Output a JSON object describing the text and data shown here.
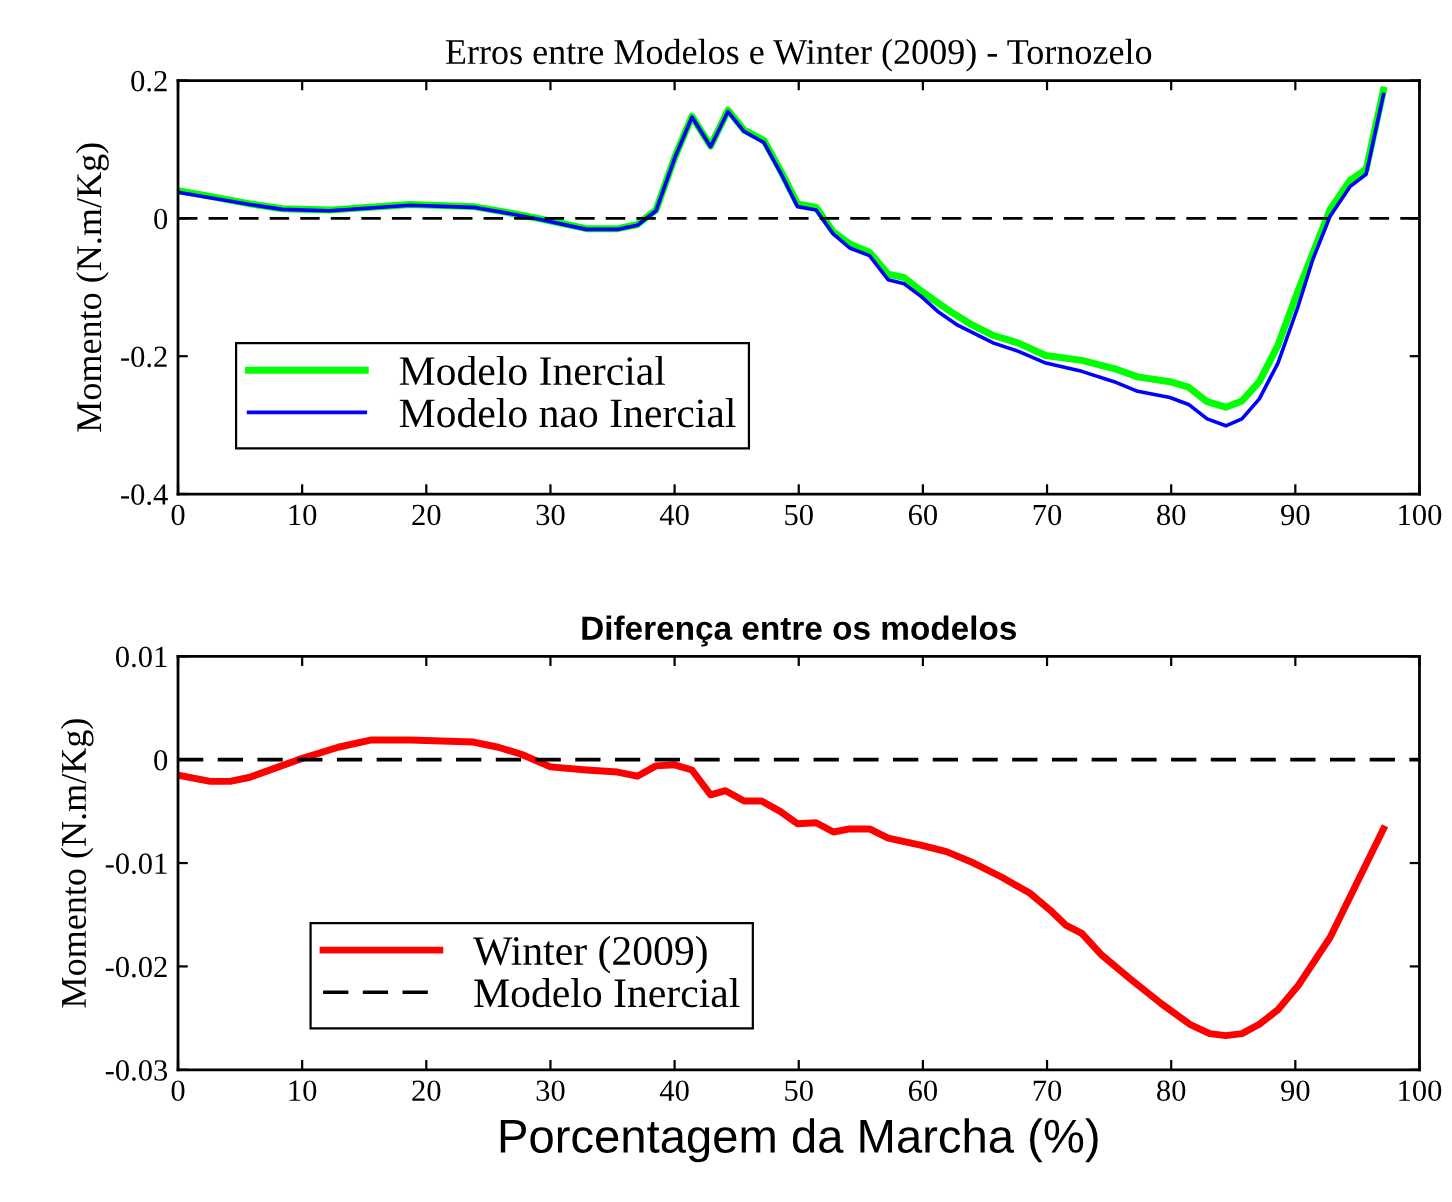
{
  "chart_data": [
    {
      "type": "line",
      "title": "Erros entre Modelos e Winter (2009) - Tornozelo",
      "ylabel": "Momento (N.m/Kg)",
      "xlim": [
        0,
        100
      ],
      "xticks": [
        0,
        10,
        20,
        30,
        40,
        50,
        60,
        70,
        80,
        90,
        100
      ],
      "ylim": [
        -0.4,
        0.2
      ],
      "yticks": [
        {
          "value": -0.4,
          "label": "-0.4"
        },
        {
          "value": -0.2,
          "label": "-0.2"
        },
        0,
        0.2
      ],
      "legend": "bottom left",
      "grid": false,
      "ref_lines": [
        {
          "axis": "y",
          "value": 0,
          "color": "#000000",
          "line_style": "dashed"
        }
      ],
      "series": [
        {
          "name": "Modelo Inercial",
          "color": "#00ff00",
          "x": [
            0,
            2.6,
            5.8,
            8.4,
            12.2,
            15.5,
            18.7,
            23.8,
            26.4,
            29,
            32.9,
            35.4,
            37,
            38.5,
            40,
            41.4,
            42.9,
            44.3,
            45.6,
            47.2,
            48.6,
            49.9,
            51.4,
            52.8,
            54.1,
            55.7,
            57.2,
            58.5,
            59.9,
            62.2,
            63.8,
            65.7,
            67.7,
            69.9,
            72.8,
            75.4,
            77.3,
            79.9,
            81.4,
            82.9,
            84.4,
            85.7,
            87.1,
            88.6,
            90.2,
            92.8,
            94.4,
            95.7,
            97.1
          ],
          "values": [
            0.04,
            0.032,
            0.021,
            0.014,
            0.012,
            0.016,
            0.02,
            0.017,
            0.009,
            0,
            -0.015,
            -0.015,
            -0.009,
            0.012,
            0.088,
            0.148,
            0.105,
            0.157,
            0.128,
            0.113,
            0.067,
            0.021,
            0.016,
            -0.02,
            -0.037,
            -0.049,
            -0.081,
            -0.086,
            -0.106,
            -0.135,
            -0.153,
            -0.17,
            -0.181,
            -0.199,
            -0.206,
            -0.218,
            -0.23,
            -0.237,
            -0.245,
            -0.266,
            -0.274,
            -0.265,
            -0.237,
            -0.184,
            -0.106,
            0.013,
            0.055,
            0.071,
            0.186
          ]
        },
        {
          "name": "Modelo nao Inercial",
          "color": "#0000ff",
          "x": [
            0,
            2.6,
            5.8,
            8.4,
            12.2,
            15.5,
            18.7,
            23.8,
            26.4,
            29,
            32.9,
            35.4,
            37,
            38.5,
            40,
            41.4,
            42.9,
            44.3,
            45.6,
            47.2,
            48.6,
            49.9,
            51.4,
            52.8,
            54.1,
            55.7,
            57.2,
            58.5,
            59.9,
            61.2,
            62.8,
            65.7,
            67.7,
            69.9,
            72.8,
            75.4,
            77.3,
            79.9,
            81.4,
            82.9,
            84.4,
            85.7,
            87.1,
            88.6,
            90.2,
            91.4,
            92.8,
            94.4,
            95.7,
            97.1
          ],
          "values": [
            0.038,
            0.03,
            0.02,
            0.013,
            0.011,
            0.015,
            0.019,
            0.016,
            0.008,
            -0.001,
            -0.016,
            -0.016,
            -0.01,
            0.011,
            0.087,
            0.147,
            0.104,
            0.155,
            0.126,
            0.11,
            0.064,
            0.017,
            0.012,
            -0.023,
            -0.043,
            -0.054,
            -0.089,
            -0.095,
            -0.114,
            -0.135,
            -0.155,
            -0.181,
            -0.193,
            -0.21,
            -0.222,
            -0.237,
            -0.251,
            -0.26,
            -0.27,
            -0.291,
            -0.301,
            -0.291,
            -0.262,
            -0.21,
            -0.129,
            -0.06,
            0.003,
            0.046,
            0.064,
            0.18
          ]
        }
      ]
    },
    {
      "type": "line",
      "title": "Diferença entre os modelos",
      "xlabel": "Porcentagem da Marcha (%)",
      "ylabel": "Momento (N.m/Kg)",
      "xlim": [
        0,
        100
      ],
      "xticks": [
        0,
        10,
        20,
        30,
        40,
        50,
        60,
        70,
        80,
        90,
        100
      ],
      "ylim": [
        -0.03,
        0.01
      ],
      "yticks": [
        {
          "value": -0.03,
          "label": "-0.03"
        },
        {
          "value": -0.02,
          "label": "-0.02"
        },
        {
          "value": -0.01,
          "label": "-0.01"
        },
        0,
        0.01
      ],
      "legend": "bottom left",
      "grid": false,
      "series": [
        {
          "name": "Winter (2009)",
          "color": "#ff0000",
          "x": [
            0,
            2.6,
            4.2,
            5.8,
            9.7,
            12.9,
            15.5,
            18.7,
            23.8,
            25.8,
            27.7,
            30,
            32.9,
            35.4,
            37,
            38.5,
            40,
            41.4,
            42.9,
            44.1,
            45.6,
            47,
            48.5,
            49.9,
            51.4,
            52.8,
            54.1,
            55.7,
            57.2,
            59.9,
            61.9,
            64.1,
            66.4,
            68.6,
            70.2,
            71.5,
            72.8,
            74.4,
            76.7,
            79.2,
            81.5,
            83.1,
            84.4,
            85.7,
            87.1,
            88.6,
            90.2,
            92.8,
            97.1
          ],
          "values": [
            -0.0015,
            -0.0021,
            -0.0021,
            -0.0017,
            0,
            0.0012,
            0.0019,
            0.0019,
            0.0017,
            0.0012,
            0.0005,
            -0.0007,
            -0.001,
            -0.0012,
            -0.0016,
            -0.0006,
            -0.0005,
            -0.001,
            -0.0034,
            -0.003,
            -0.004,
            -0.004,
            -0.005,
            -0.0062,
            -0.0061,
            -0.007,
            -0.0067,
            -0.0067,
            -0.0076,
            -0.0083,
            -0.0089,
            -0.01,
            -0.0114,
            -0.0129,
            -0.0145,
            -0.016,
            -0.0168,
            -0.0189,
            -0.0212,
            -0.0236,
            -0.0256,
            -0.0265,
            -0.0267,
            -0.0265,
            -0.0256,
            -0.0242,
            -0.0219,
            -0.0172,
            -0.0067
          ]
        },
        {
          "name": "Modelo Inercial",
          "color": "#000000",
          "line_style": "dashed",
          "x": [
            0,
            100
          ],
          "values": [
            0,
            0
          ]
        }
      ]
    }
  ]
}
